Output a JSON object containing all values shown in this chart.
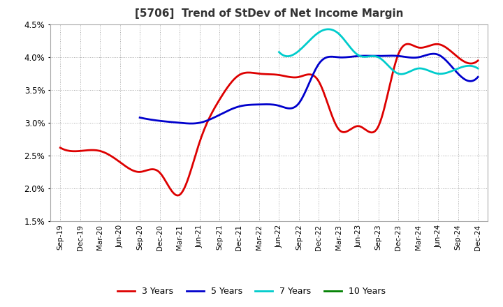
{
  "title": "[5706]  Trend of StDev of Net Income Margin",
  "x_labels": [
    "Sep-19",
    "Dec-19",
    "Mar-20",
    "Jun-20",
    "Sep-20",
    "Dec-20",
    "Mar-21",
    "Jun-21",
    "Sep-21",
    "Dec-21",
    "Mar-22",
    "Jun-22",
    "Sep-22",
    "Dec-22",
    "Mar-23",
    "Jun-23",
    "Sep-23",
    "Dec-23",
    "Mar-24",
    "Jun-24",
    "Sep-24",
    "Dec-24"
  ],
  "ylim": [
    0.015,
    0.045
  ],
  "yticks": [
    0.015,
    0.02,
    0.025,
    0.03,
    0.035,
    0.04,
    0.045
  ],
  "series": {
    "3 Years": {
      "color": "#dd0000",
      "data_indices": [
        0,
        1,
        2,
        3,
        4,
        5,
        6,
        7,
        8,
        9,
        10,
        11,
        12,
        13,
        14,
        15,
        16,
        17,
        18,
        19,
        20,
        21
      ],
      "data": [
        0.0262,
        0.0257,
        0.0257,
        0.024,
        0.0225,
        0.0224,
        0.019,
        0.027,
        0.0335,
        0.0373,
        0.0375,
        0.0373,
        0.037,
        0.0363,
        0.029,
        0.0295,
        0.0295,
        0.0405,
        0.0415,
        0.042,
        0.04,
        0.0395
      ]
    },
    "5 Years": {
      "color": "#0000cc",
      "data_indices": [
        4,
        5,
        6,
        7,
        8,
        9,
        10,
        11,
        12,
        13,
        14,
        15,
        16,
        17,
        18,
        19,
        20,
        21
      ],
      "data": [
        0.0308,
        0.0303,
        0.03,
        0.03,
        0.0312,
        0.0325,
        0.0328,
        0.0326,
        0.033,
        0.039,
        0.04,
        0.0402,
        0.0402,
        0.0402,
        0.04,
        0.0404,
        0.0375,
        0.037
      ]
    },
    "7 Years": {
      "color": "#00cccc",
      "data_indices": [
        11,
        12,
        13,
        14,
        15,
        16,
        17,
        18,
        19,
        20,
        21
      ],
      "data": [
        0.0408,
        0.041,
        0.0438,
        0.0436,
        0.0403,
        0.04,
        0.0375,
        0.0383,
        0.0375,
        0.0383,
        0.0383
      ]
    },
    "10 Years": {
      "color": "#008000",
      "data_indices": [],
      "data": []
    }
  },
  "background_color": "#ffffff",
  "grid_color": "#aaaaaa",
  "title_fontsize": 11,
  "legend_fontsize": 9
}
